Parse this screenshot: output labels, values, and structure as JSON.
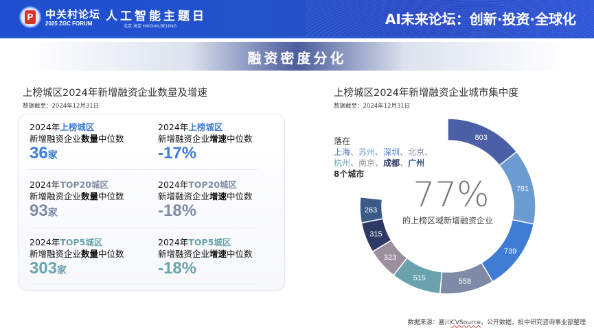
{
  "header": {
    "brand_cn": "中关村论坛",
    "brand_en": "2025 ZGC FORUM",
    "logo_letter": "P",
    "event_title": "人工智能主题日",
    "event_sub": "北京·海淀  HAIDIAN,BEIJING",
    "slogan": "AI未来论坛：创新·投资·全球化"
  },
  "section_title": "融资密度分化",
  "left_panel": {
    "title": "上榜城区2024年新增融资企业数量及增速",
    "date": "数据截至：2024年12月31日",
    "metrics": [
      {
        "year": "2024年",
        "group": "上榜城区",
        "pre": "新增融资企业",
        "key": "数量",
        "post": "中位数",
        "value": "36",
        "unit": "家",
        "color": "#3f7dd4"
      },
      {
        "year": "2024年",
        "group": "上榜城区",
        "pre": "新增融资企业",
        "key": "增速",
        "post": "中位数",
        "value": "-17%",
        "unit": "",
        "color": "#3f7dd4"
      },
      {
        "year": "2024年",
        "group": "TOP20城区",
        "pre": "新增融资企业",
        "key": "数量",
        "post": "中位数",
        "value": "93",
        "unit": "家",
        "color": "#7e8aa6"
      },
      {
        "year": "2024年",
        "group": "TOP20城区",
        "pre": "新增融资企业",
        "key": "增速",
        "post": "中位数",
        "value": "-18%",
        "unit": "",
        "color": "#7e8aa6"
      },
      {
        "year": "2024年",
        "group": "TOP5城区",
        "pre": "新增融资企业",
        "key": "数量",
        "post": "中位数",
        "value": "303",
        "unit": "家",
        "color": "#6aa3ae"
      },
      {
        "year": "2024年",
        "group": "TOP5城区",
        "pre": "新增融资企业",
        "key": "增速",
        "post": "中位数",
        "value": "-18%",
        "unit": "",
        "color": "#6aa3ae"
      }
    ]
  },
  "right_panel": {
    "title": "上榜城区2024年新增融资企业城市集中度",
    "date": "数据截至：2024年12月31日",
    "legend_intro": "落在",
    "cities": [
      {
        "name": "上海",
        "color": "#4a6fc0"
      },
      {
        "name": "苏州",
        "color": "#6b9bd0"
      },
      {
        "name": "深圳",
        "color": "#3f7dd4"
      },
      {
        "name": "北京",
        "color": "#7e8aa6"
      },
      {
        "name": "杭州",
        "color": "#6aa3ae"
      },
      {
        "name": "南京",
        "color": "#9c8f9e"
      },
      {
        "name": "成都",
        "color": "#2e3a63"
      },
      {
        "name": "广州",
        "color": "#3b5a8a"
      }
    ],
    "city_count_label": "8个城市",
    "center_value": "77%",
    "center_label": "的上榜区域新增融资企业"
  },
  "chart_data": {
    "type": "pie",
    "subtype": "donut (partial arc)",
    "title": "上榜城区2024年新增融资企业城市集中度",
    "categories": [
      "上海",
      "苏州",
      "深圳",
      "北京",
      "杭州",
      "南京",
      "成都",
      "广州"
    ],
    "values": [
      803,
      781,
      739,
      558,
      515,
      323,
      315,
      263
    ],
    "colors": [
      "#4a5fa5",
      "#6b9bd0",
      "#3f7dd4",
      "#7e8aa6",
      "#6aa3ae",
      "#9c8f9e",
      "#2e3a63",
      "#3b5a8a"
    ],
    "center_annotation": "77% 的上榜区域新增融资企业",
    "start_angle_deg": 0,
    "span_deg": 276,
    "legend_position": "top-left text"
  },
  "footer": {
    "prefix": "数据来源：嘉川",
    "underlined": "CVSource",
    "suffix": "，公开数据，投中研究咨询事业部整理"
  }
}
